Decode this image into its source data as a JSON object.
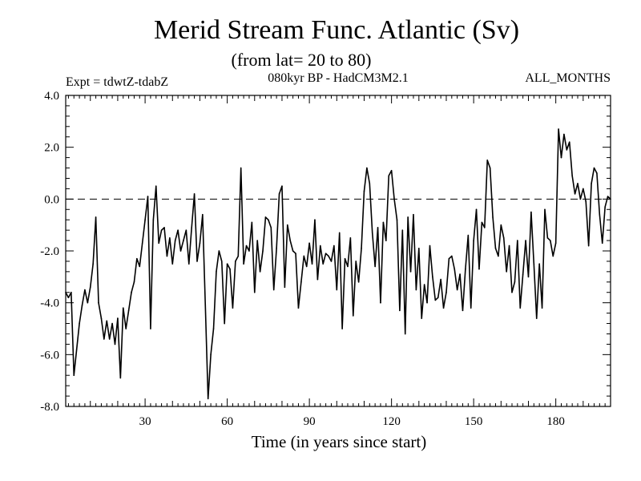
{
  "chart_data": {
    "type": "line",
    "title": "Merid Stream Func. Atlantic (Sv)",
    "subtitle": "(from lat= 20 to 80)",
    "experiment": "Expt = tdwtZ-tdabZ",
    "model": "080kyr BP - HadCM3M2.1",
    "period": "ALL_MONTHS",
    "xlabel": "Time (in years since start)",
    "ylabel": "",
    "xlim": [
      1,
      200
    ],
    "ylim": [
      -8.0,
      4.0
    ],
    "x_ticks": [
      30,
      60,
      90,
      120,
      150,
      180
    ],
    "x_tick_labels": [
      "30",
      "60",
      "90",
      "120",
      "150",
      "180"
    ],
    "y_ticks": [
      -8.0,
      -6.0,
      -4.0,
      -2.0,
      0.0,
      2.0,
      4.0
    ],
    "y_tick_labels": [
      "-8.0",
      "-6.0",
      "-4.0",
      "-2.0",
      "0.0",
      "2.0",
      "4.0"
    ],
    "reference_line": {
      "y": 0.0,
      "style": "dashed"
    },
    "series": [
      {
        "name": "Merid Stream Func. Atlantic",
        "x_start": 1,
        "x_step": 1,
        "values": [
          -3.6,
          -3.8,
          -3.6,
          -6.8,
          -5.8,
          -4.8,
          -4.1,
          -3.5,
          -4.0,
          -3.4,
          -2.5,
          -0.7,
          -4.0,
          -4.6,
          -5.4,
          -4.7,
          -5.4,
          -4.8,
          -5.6,
          -4.6,
          -6.9,
          -4.2,
          -5.0,
          -4.3,
          -3.6,
          -3.2,
          -2.3,
          -2.6,
          -1.7,
          -0.8,
          0.1,
          -5.0,
          -0.8,
          0.5,
          -1.7,
          -1.2,
          -1.1,
          -2.2,
          -1.5,
          -2.5,
          -1.6,
          -1.2,
          -2.0,
          -1.6,
          -1.2,
          -2.5,
          -1.1,
          0.2,
          -2.4,
          -1.7,
          -0.6,
          -4.1,
          -7.7,
          -6.0,
          -5.0,
          -2.8,
          -2.0,
          -2.4,
          -4.8,
          -2.5,
          -2.7,
          -4.2,
          -2.4,
          -2.2,
          1.2,
          -2.5,
          -1.8,
          -2.0,
          -0.9,
          -3.6,
          -1.6,
          -2.8,
          -2.0,
          -0.7,
          -0.8,
          -1.1,
          -3.5,
          -1.9,
          0.2,
          0.5,
          -3.4,
          -1.0,
          -1.6,
          -2.0,
          -2.1,
          -4.2,
          -3.2,
          -2.2,
          -2.6,
          -1.7,
          -2.5,
          -0.8,
          -3.1,
          -1.8,
          -2.5,
          -2.1,
          -2.2,
          -2.4,
          -1.8,
          -3.5,
          -1.3,
          -5.0,
          -2.3,
          -2.6,
          -1.5,
          -4.5,
          -2.4,
          -3.2,
          -1.9,
          0.3,
          1.2,
          0.6,
          -1.3,
          -2.6,
          -1.1,
          -4.0,
          -0.9,
          -1.6,
          0.9,
          1.1,
          0.0,
          -0.8,
          -4.3,
          -1.2,
          -5.2,
          -0.7,
          -2.8,
          -0.6,
          -3.5,
          -1.9,
          -4.6,
          -3.3,
          -4.0,
          -1.8,
          -3.0,
          -3.9,
          -3.8,
          -3.1,
          -4.2,
          -3.6,
          -2.3,
          -2.2,
          -2.7,
          -3.5,
          -2.9,
          -4.3,
          -2.7,
          -1.4,
          -4.2,
          -1.6,
          -0.4,
          -2.7,
          -0.9,
          -1.1,
          1.5,
          1.2,
          -0.7,
          -1.9,
          -2.2,
          -1.0,
          -1.5,
          -2.8,
          -1.8,
          -3.6,
          -3.2,
          -1.6,
          -4.2,
          -2.9,
          -1.6,
          -3.0,
          -0.5,
          -2.5,
          -4.6,
          -2.5,
          -4.2,
          -0.4,
          -1.5,
          -1.6,
          -2.2,
          -1.7,
          2.7,
          1.6,
          2.5,
          1.9,
          2.2,
          0.9,
          0.2,
          0.6,
          0.0,
          0.4,
          -0.1,
          -1.8,
          0.6,
          1.2,
          1.0,
          -0.6,
          -1.7,
          -0.3,
          0.1,
          0.0
        ]
      }
    ]
  }
}
